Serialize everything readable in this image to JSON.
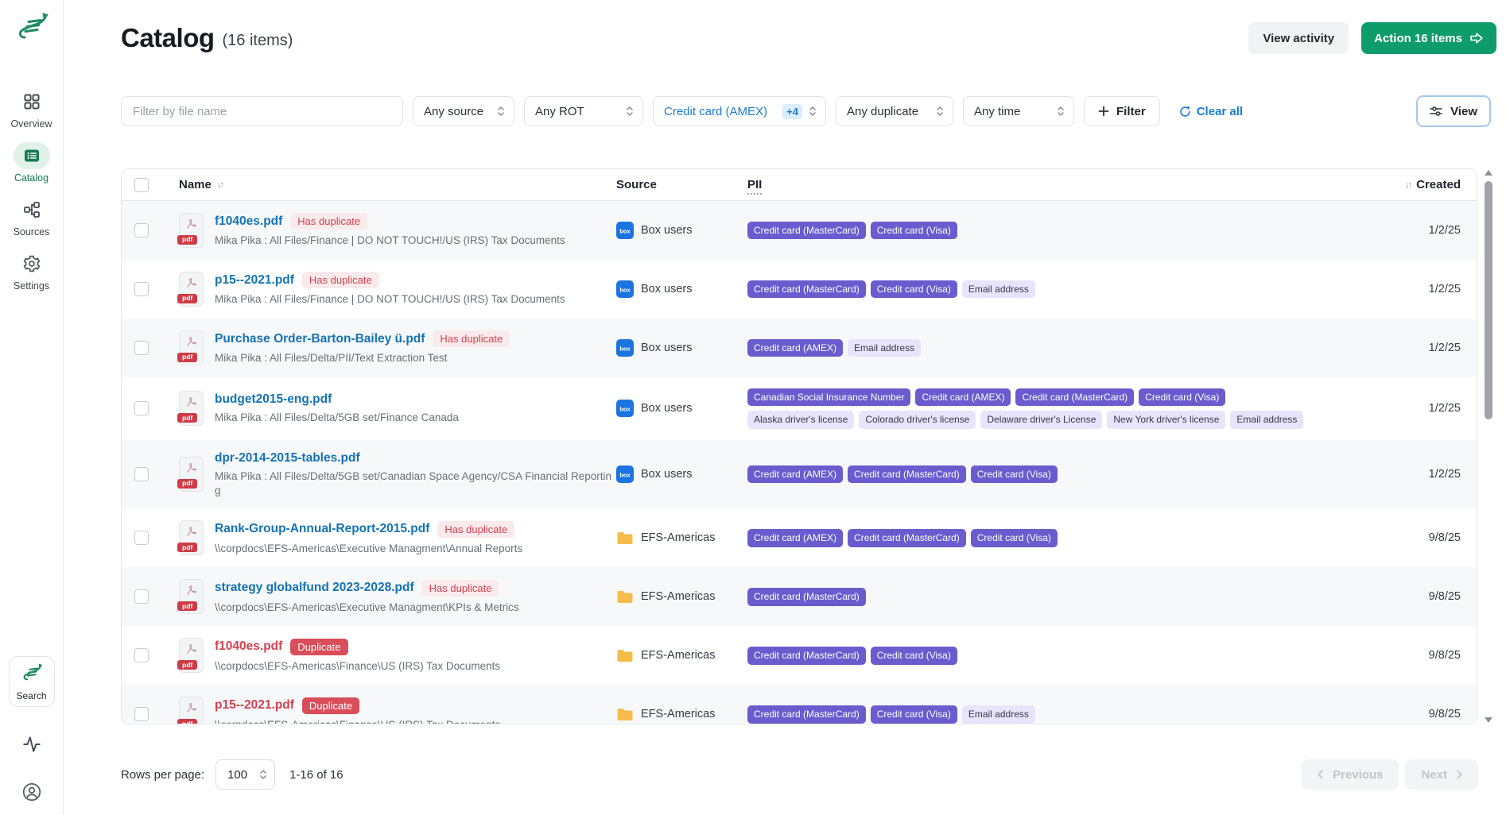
{
  "colors": {
    "brand_green": "#0E9C6B",
    "sidebar_active_green": "#147A52",
    "link_blue": "#1473B5",
    "filter_blue": "#1B7CD4",
    "tag_purple": "#6A5CCE",
    "tag_soft_purple": "#E8E4FB",
    "alert_red": "#D2414F",
    "duplicate_badge_red": "#DA4D5A"
  },
  "sidebar": {
    "items": [
      {
        "label": "Overview",
        "icon": "grid",
        "active": false
      },
      {
        "label": "Catalog",
        "icon": "list",
        "active": true
      },
      {
        "label": "Sources",
        "icon": "network",
        "active": false
      },
      {
        "label": "Settings",
        "icon": "gear",
        "active": false
      }
    ],
    "bottom": {
      "search": "Search"
    }
  },
  "header": {
    "title": "Catalog",
    "count": "(16 items)",
    "view_activity": "View activity",
    "action_button": "Action 16 items"
  },
  "filters": {
    "search_placeholder": "Filter by file name",
    "selects": [
      {
        "value": "Any source",
        "active": false
      },
      {
        "value": "Any ROT",
        "active": false
      },
      {
        "value": "Credit card (AMEX)",
        "badge": "+4",
        "active": true
      },
      {
        "value": "Any duplicate",
        "active": false
      },
      {
        "value": "Any time",
        "active": false
      }
    ],
    "filter_button": "Filter",
    "clear_all": "Clear all",
    "view_button": "View"
  },
  "table": {
    "columns": {
      "name": "Name",
      "source": "Source",
      "pii": "PII",
      "created": "Created"
    },
    "rows": [
      {
        "name": "f1040es.pdf",
        "badge": {
          "label": "Has duplicate",
          "type": "has_duplicate"
        },
        "path": "Mika Pika : All Files/Finance | DO NOT TOUCH!/US (IRS) Tax Documents",
        "source": {
          "icon": "box",
          "label": "Box users"
        },
        "pii": [
          [
            {
              "label": "Credit card (MasterCard)",
              "style": "solid"
            },
            {
              "label": "Credit card (Visa)",
              "style": "solid"
            }
          ]
        ],
        "created": "1/2/25"
      },
      {
        "name": "p15--2021.pdf",
        "badge": {
          "label": "Has duplicate",
          "type": "has_duplicate"
        },
        "path": "Mika Pika : All Files/Finance | DO NOT TOUCH!/US (IRS) Tax Documents",
        "source": {
          "icon": "box",
          "label": "Box users"
        },
        "pii": [
          [
            {
              "label": "Credit card (MasterCard)",
              "style": "solid"
            },
            {
              "label": "Credit card (Visa)",
              "style": "solid"
            },
            {
              "label": "Email address",
              "style": "soft"
            }
          ]
        ],
        "created": "1/2/25"
      },
      {
        "name": "Purchase Order-Barton-Bailey ü.pdf",
        "badge": {
          "label": "Has duplicate",
          "type": "has_duplicate"
        },
        "path": "Mika Pika : All Files/Delta/PII/Text Extraction Test",
        "source": {
          "icon": "box",
          "label": "Box users"
        },
        "pii": [
          [
            {
              "label": "Credit card (AMEX)",
              "style": "solid"
            },
            {
              "label": "Email address",
              "style": "soft"
            }
          ]
        ],
        "created": "1/2/25"
      },
      {
        "name": "budget2015-eng.pdf",
        "badge": null,
        "path": "Mika Pika : All Files/Delta/5GB set/Finance Canada",
        "source": {
          "icon": "box",
          "label": "Box users"
        },
        "pii": [
          [
            {
              "label": "Canadian Social Insurance Number",
              "style": "solid"
            },
            {
              "label": "Credit card (AMEX)",
              "style": "solid"
            },
            {
              "label": "Credit card (MasterCard)",
              "style": "solid"
            },
            {
              "label": "Credit card (Visa)",
              "style": "solid"
            }
          ],
          [
            {
              "label": "Alaska driver's license",
              "style": "soft"
            },
            {
              "label": "Colorado driver's license",
              "style": "soft"
            },
            {
              "label": "Delaware driver's License",
              "style": "soft"
            },
            {
              "label": "New York driver's license",
              "style": "soft"
            },
            {
              "label": "Email address",
              "style": "soft"
            }
          ]
        ],
        "created": "1/2/25"
      },
      {
        "name": "dpr-2014-2015-tables.pdf",
        "badge": null,
        "path": "Mika Pika : All Files/Delta/5GB set/Canadian Space Agency/CSA Financial Reporting",
        "source": {
          "icon": "box",
          "label": "Box users"
        },
        "pii": [
          [
            {
              "label": "Credit card (AMEX)",
              "style": "solid"
            },
            {
              "label": "Credit card (MasterCard)",
              "style": "solid"
            },
            {
              "label": "Credit card (Visa)",
              "style": "solid"
            }
          ]
        ],
        "created": "1/2/25"
      },
      {
        "name": "Rank-Group-Annual-Report-2015.pdf",
        "badge": {
          "label": "Has duplicate",
          "type": "has_duplicate"
        },
        "path": "\\\\corpdocs\\EFS-Americas\\Executive Managment\\Annual Reports",
        "source": {
          "icon": "folder",
          "label": "EFS-Americas"
        },
        "pii": [
          [
            {
              "label": "Credit card (AMEX)",
              "style": "solid"
            },
            {
              "label": "Credit card (MasterCard)",
              "style": "solid"
            },
            {
              "label": "Credit card (Visa)",
              "style": "solid"
            }
          ]
        ],
        "created": "9/8/25"
      },
      {
        "name": "strategy globalfund 2023-2028.pdf",
        "badge": {
          "label": "Has duplicate",
          "type": "has_duplicate"
        },
        "path": "\\\\corpdocs\\EFS-Americas\\Executive Managment\\KPIs & Metrics",
        "source": {
          "icon": "folder",
          "label": "EFS-Americas"
        },
        "pii": [
          [
            {
              "label": "Credit card (MasterCard)",
              "style": "solid"
            }
          ]
        ],
        "created": "9/8/25"
      },
      {
        "name": "f1040es.pdf",
        "badge": {
          "label": "Duplicate",
          "type": "duplicate"
        },
        "path": "\\\\corpdocs\\EFS-Americas\\Finance\\US (IRS) Tax Documents",
        "source": {
          "icon": "folder",
          "label": "EFS-Americas"
        },
        "pii": [
          [
            {
              "label": "Credit card (MasterCard)",
              "style": "solid"
            },
            {
              "label": "Credit card (Visa)",
              "style": "solid"
            }
          ]
        ],
        "created": "9/8/25"
      },
      {
        "name": "p15--2021.pdf",
        "badge": {
          "label": "Duplicate",
          "type": "duplicate"
        },
        "path": "\\\\corpdocs\\EFS-Americas\\Finance\\US (IRS) Tax Documents",
        "source": {
          "icon": "folder",
          "label": "EFS-Americas"
        },
        "pii": [
          [
            {
              "label": "Credit card (MasterCard)",
              "style": "solid"
            },
            {
              "label": "Credit card (Visa)",
              "style": "solid"
            },
            {
              "label": "Email address",
              "style": "soft"
            }
          ]
        ],
        "created": "9/8/25"
      }
    ]
  },
  "footer": {
    "rows_per_page": "Rows per page:",
    "page_size": "100",
    "range": "1-16 of 16",
    "prev": "Previous",
    "next": "Next"
  }
}
